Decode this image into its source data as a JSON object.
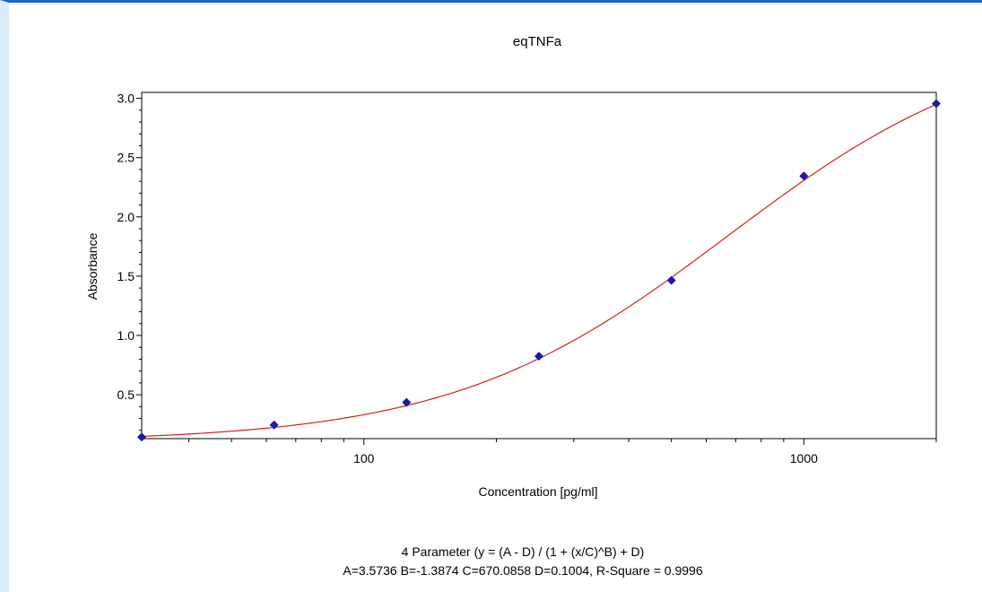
{
  "chart_data": {
    "type": "scatter",
    "title": "eqTNFa",
    "xlabel": "Concentration [pg/ml]",
    "ylabel": "Absorbance",
    "x_scale": "log",
    "xlim": [
      31.25,
      2000
    ],
    "ylim": [
      0.13,
      3.05
    ],
    "x_ticks": [
      {
        "value": 100,
        "label": "100"
      },
      {
        "value": 1000,
        "label": "1000"
      }
    ],
    "y_ticks": [
      {
        "value": 0.5,
        "label": "0.5"
      },
      {
        "value": 1.0,
        "label": "1.0"
      },
      {
        "value": 1.5,
        "label": "1.5"
      },
      {
        "value": 2.0,
        "label": "2.0"
      },
      {
        "value": 2.5,
        "label": "2.5"
      },
      {
        "value": 3.0,
        "label": "3.0"
      }
    ],
    "points": {
      "color": "#1a1aa6",
      "x": [
        31.25,
        62.5,
        125,
        250,
        500,
        1000,
        2000
      ],
      "y": [
        0.143,
        0.245,
        0.435,
        0.825,
        1.465,
        2.345,
        2.955
      ]
    },
    "fit": {
      "color": "#d42020",
      "A": 3.5736,
      "B": -1.3874,
      "C": 670.0858,
      "D": 0.1004
    },
    "grid": false,
    "equation_line1": "4 Parameter (y = (A - D) / (1 + (x/C)^B) + D)",
    "equation_line2": "A=3.5736  B=-1.3874  C=670.0858  D=0.1004, R-Square = 0.9996"
  }
}
